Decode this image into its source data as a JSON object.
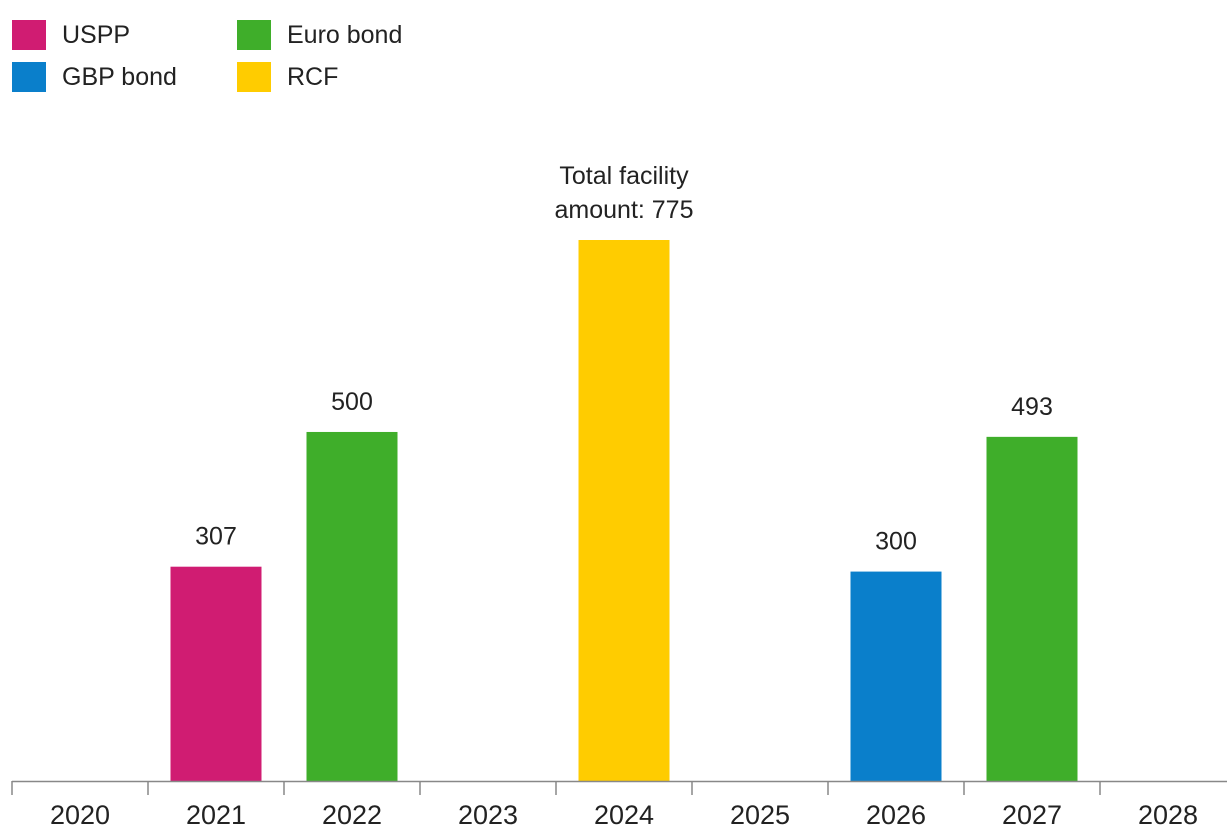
{
  "chart_data": {
    "type": "bar",
    "categories": [
      "2020",
      "2021",
      "2022",
      "2023",
      "2024",
      "2025",
      "2026",
      "2027",
      "2028"
    ],
    "ylim": [
      0,
      775
    ],
    "grid": false,
    "legend_placement": "top-left",
    "legend": [
      {
        "name": "USPP",
        "color": "#d01c72"
      },
      {
        "name": "Euro bond",
        "color": "#3fae2a"
      },
      {
        "name": "GBP bond",
        "color": "#0a7fcb"
      },
      {
        "name": "RCF",
        "color": "#ffcc00"
      }
    ],
    "bars": [
      {
        "category": "2021",
        "series": "USPP",
        "value": 307,
        "label": "307"
      },
      {
        "category": "2022",
        "series": "Euro bond",
        "value": 500,
        "label": "500"
      },
      {
        "category": "2024",
        "series": "RCF",
        "value": 775,
        "label": "Total facility amount: 775",
        "label_lines": [
          "Total facility",
          "amount: 775"
        ]
      },
      {
        "category": "2026",
        "series": "GBP bond",
        "value": 300,
        "label": "300"
      },
      {
        "category": "2027",
        "series": "Euro bond",
        "value": 493,
        "label": "493"
      }
    ]
  }
}
